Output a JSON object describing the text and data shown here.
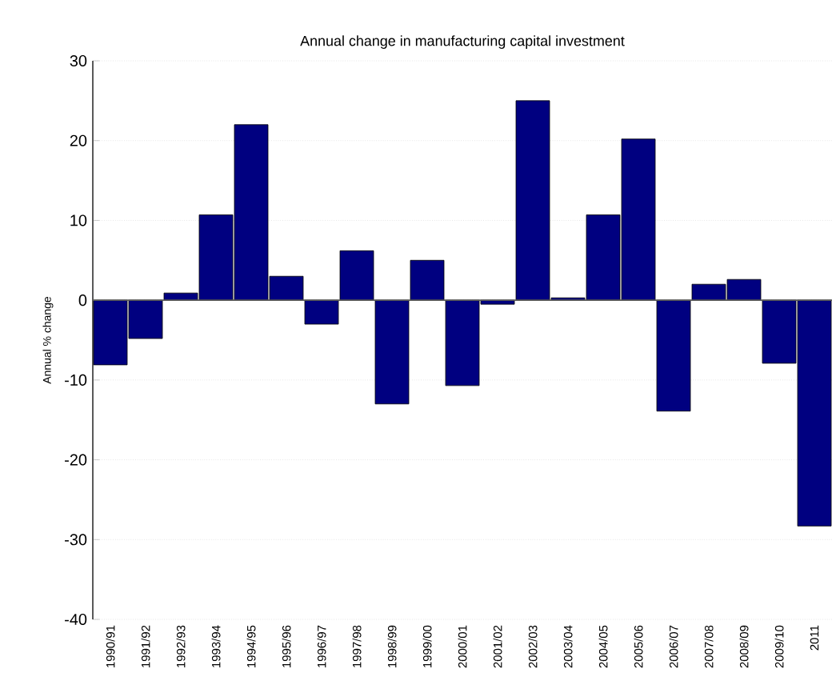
{
  "chart_data": {
    "type": "bar",
    "title": "Annual change in manufacturing capital investment",
    "ylabel": "Annual % change",
    "categories": [
      "1990/91",
      "1991/92",
      "1992/93",
      "1993/94",
      "1994/95",
      "1995/96",
      "1996/97",
      "1997/98",
      "1998/99",
      "1999/00",
      "2000/01",
      "2001/02",
      "2002/03",
      "2003/04",
      "2004/05",
      "2005/06",
      "2006/07",
      "2007/08",
      "2008/09",
      "2009/10",
      "2011"
    ],
    "values": [
      -8.1,
      -4.8,
      0.9,
      10.7,
      22,
      3,
      -3,
      6.2,
      -13,
      5,
      -10.7,
      -0.5,
      25,
      0.3,
      10.7,
      20.2,
      -13.9,
      2,
      2.6,
      -7.9,
      -28.3
    ],
    "color": "#000080",
    "ylim": [
      -40,
      30
    ],
    "yticks": [
      -40,
      -30,
      -20,
      -10,
      0,
      10,
      20,
      30
    ],
    "grid": "y"
  }
}
